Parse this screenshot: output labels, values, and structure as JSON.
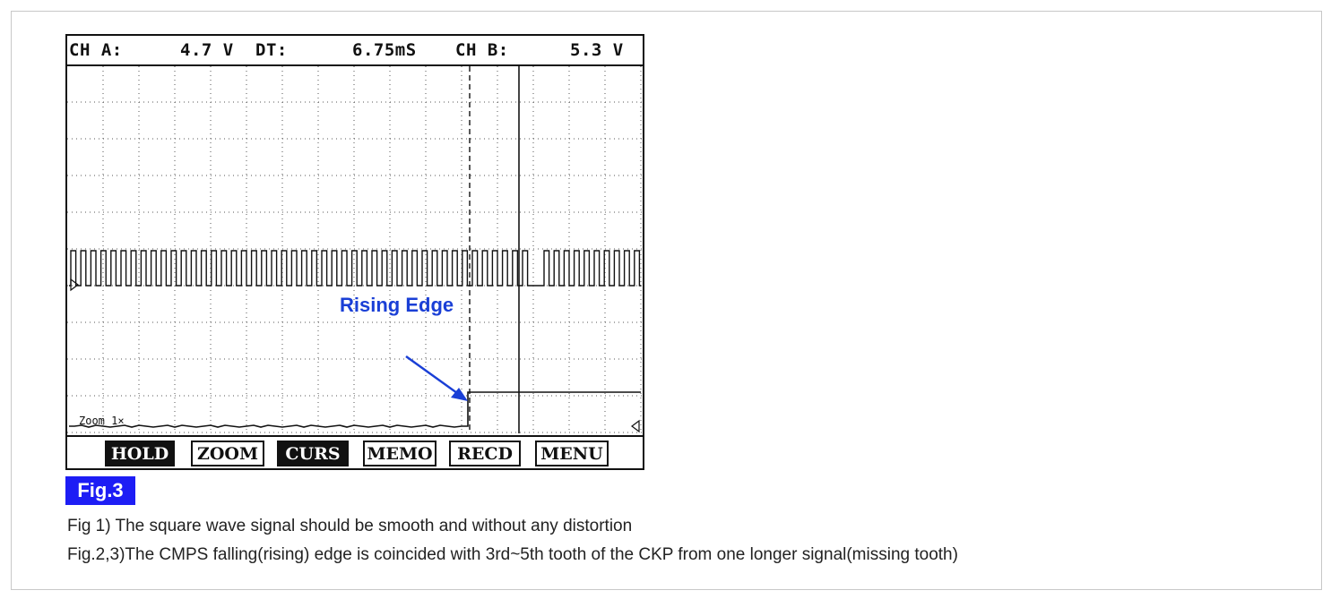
{
  "scope": {
    "header": {
      "ch_a_label": "CH A:",
      "ch_a_value": "4.7 V",
      "dt_label": "DT:",
      "dt_value": "6.75mS",
      "ch_b_label": "CH B:",
      "ch_b_value": "5.3 V"
    },
    "zoom_label": "Zoom 1×",
    "annotation": "Rising Edge",
    "softkeys": [
      {
        "label": "HOLD",
        "inverted": true
      },
      {
        "label": "ZOOM",
        "inverted": false
      },
      {
        "label": "CURS",
        "inverted": true
      },
      {
        "label": "MEMO",
        "inverted": false
      },
      {
        "label": "RECD",
        "inverted": false
      },
      {
        "label": "MENU",
        "inverted": false
      }
    ]
  },
  "figure_label": "Fig.3",
  "captions": {
    "line1": "Fig 1) The square wave signal should be smooth and without any distortion",
    "line2": "Fig.2,3)The CMPS falling(rising) edge is coincided with 3rd~5th tooth of the CKP from one longer signal(missing tooth)"
  },
  "colors": {
    "annotation": "#1a3fd6",
    "figure_label_bg": "#1d1df5",
    "trace": "#111111"
  }
}
